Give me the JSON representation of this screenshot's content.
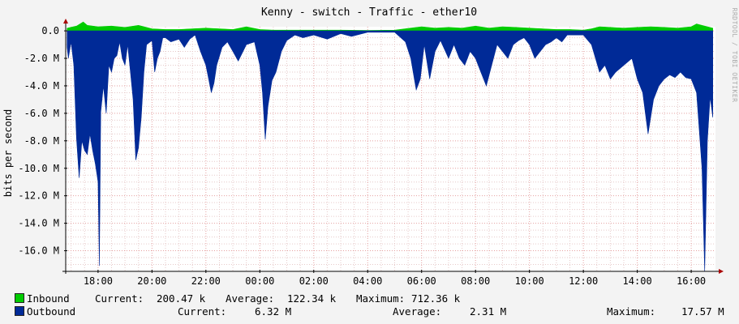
{
  "chart_data": {
    "type": "area",
    "title": "Kenny - switch - Traffic - ether10",
    "ylabel": "bits per second",
    "side_text": "RRDTOOL / TOBI OETIKER",
    "ylim": [
      -17.5,
      0.3
    ],
    "y_ticks": [
      0,
      -2,
      -4,
      -6,
      -8,
      -10,
      -12,
      -14,
      -16
    ],
    "y_tick_labels": [
      "0.0",
      "-2.0 M",
      "-4.0 M",
      "-6.0 M",
      "-8.0 M",
      "-10.0 M",
      "-12.0 M",
      "-14.0 M",
      "-16.0 M"
    ],
    "x_range_hours": [
      16.8,
      40.9
    ],
    "x_ticks": [
      18,
      20,
      22,
      24,
      26,
      28,
      30,
      32,
      34,
      36,
      38,
      40
    ],
    "x_tick_labels": [
      "18:00",
      "20:00",
      "22:00",
      "00:00",
      "02:00",
      "04:00",
      "06:00",
      "08:00",
      "10:00",
      "12:00",
      "14:00",
      "16:00"
    ],
    "series": [
      {
        "name": "Inbound",
        "color": "#00cc00",
        "points": [
          [
            16.85,
            0.2
          ],
          [
            17.2,
            0.35
          ],
          [
            17.45,
            0.65
          ],
          [
            17.6,
            0.4
          ],
          [
            18,
            0.3
          ],
          [
            18.5,
            0.35
          ],
          [
            19,
            0.25
          ],
          [
            19.5,
            0.4
          ],
          [
            20,
            0.15
          ],
          [
            20.5,
            0.1
          ],
          [
            21,
            0.1
          ],
          [
            21.5,
            0.15
          ],
          [
            22,
            0.2
          ],
          [
            22.5,
            0.15
          ],
          [
            23,
            0.1
          ],
          [
            23.5,
            0.3
          ],
          [
            24,
            0.1
          ],
          [
            24.5,
            0.05
          ],
          [
            25,
            0.05
          ],
          [
            26,
            0.05
          ],
          [
            27,
            0.05
          ],
          [
            28,
            0.03
          ],
          [
            29,
            0.05
          ],
          [
            30,
            0.3
          ],
          [
            30.5,
            0.2
          ],
          [
            31,
            0.25
          ],
          [
            31.5,
            0.2
          ],
          [
            32,
            0.35
          ],
          [
            32.5,
            0.2
          ],
          [
            33,
            0.3
          ],
          [
            33.5,
            0.25
          ],
          [
            34,
            0.2
          ],
          [
            34.5,
            0.15
          ],
          [
            35,
            0.1
          ],
          [
            35.5,
            0.1
          ],
          [
            36,
            0.05
          ],
          [
            36.3,
            0.15
          ],
          [
            36.6,
            0.3
          ],
          [
            37,
            0.25
          ],
          [
            37.5,
            0.2
          ],
          [
            38,
            0.25
          ],
          [
            38.5,
            0.3
          ],
          [
            39,
            0.25
          ],
          [
            39.5,
            0.2
          ],
          [
            40,
            0.3
          ],
          [
            40.2,
            0.5
          ],
          [
            40.5,
            0.35
          ],
          [
            40.8,
            0.2
          ]
        ]
      },
      {
        "name": "Outbound",
        "color": "#002a97",
        "points": [
          [
            16.85,
            -1.2
          ],
          [
            16.9,
            -2.0
          ],
          [
            17.0,
            -0.8
          ],
          [
            17.1,
            -2.5
          ],
          [
            17.2,
            -7.8
          ],
          [
            17.3,
            -10.7
          ],
          [
            17.4,
            -8.0
          ],
          [
            17.5,
            -8.7
          ],
          [
            17.6,
            -9.0
          ],
          [
            17.7,
            -7.5
          ],
          [
            17.8,
            -8.7
          ],
          [
            17.9,
            -9.7
          ],
          [
            18.0,
            -11.0
          ],
          [
            18.05,
            -17.1
          ],
          [
            18.1,
            -5.9
          ],
          [
            18.2,
            -4.0
          ],
          [
            18.3,
            -6.0
          ],
          [
            18.4,
            -2.5
          ],
          [
            18.5,
            -3.0
          ],
          [
            18.6,
            -2.0
          ],
          [
            18.7,
            -1.8
          ],
          [
            18.8,
            -0.8
          ],
          [
            18.9,
            -2.0
          ],
          [
            19.0,
            -2.5
          ],
          [
            19.1,
            -1.0
          ],
          [
            19.2,
            -3.0
          ],
          [
            19.3,
            -5.0
          ],
          [
            19.4,
            -9.4
          ],
          [
            19.5,
            -8.5
          ],
          [
            19.6,
            -6.3
          ],
          [
            19.7,
            -3.0
          ],
          [
            19.8,
            -1.0
          ],
          [
            20.0,
            -0.7
          ],
          [
            20.1,
            -3.0
          ],
          [
            20.2,
            -2.0
          ],
          [
            20.3,
            -1.5
          ],
          [
            20.4,
            -0.5
          ],
          [
            20.5,
            -0.5
          ],
          [
            20.7,
            -0.8
          ],
          [
            21.0,
            -0.6
          ],
          [
            21.2,
            -1.2
          ],
          [
            21.4,
            -0.6
          ],
          [
            21.6,
            -0.3
          ],
          [
            21.8,
            -1.5
          ],
          [
            22.0,
            -2.5
          ],
          [
            22.1,
            -3.5
          ],
          [
            22.2,
            -4.5
          ],
          [
            22.3,
            -3.8
          ],
          [
            22.4,
            -2.5
          ],
          [
            22.6,
            -1.2
          ],
          [
            22.8,
            -0.8
          ],
          [
            23.0,
            -1.5
          ],
          [
            23.2,
            -2.2
          ],
          [
            23.5,
            -1.0
          ],
          [
            23.8,
            -0.8
          ],
          [
            24.0,
            -2.5
          ],
          [
            24.1,
            -4.5
          ],
          [
            24.2,
            -7.9
          ],
          [
            24.3,
            -5.5
          ],
          [
            24.45,
            -3.6
          ],
          [
            24.6,
            -3.0
          ],
          [
            24.8,
            -1.5
          ],
          [
            25.0,
            -0.7
          ],
          [
            25.3,
            -0.3
          ],
          [
            25.6,
            -0.5
          ],
          [
            26.0,
            -0.3
          ],
          [
            26.5,
            -0.6
          ],
          [
            27.0,
            -0.2
          ],
          [
            27.4,
            -0.4
          ],
          [
            28.0,
            -0.1
          ],
          [
            29.0,
            -0.1
          ],
          [
            29.4,
            -0.8
          ],
          [
            29.6,
            -2.0
          ],
          [
            29.8,
            -4.3
          ],
          [
            29.95,
            -3.5
          ],
          [
            30.1,
            -1.0
          ],
          [
            30.3,
            -3.5
          ],
          [
            30.5,
            -1.5
          ],
          [
            30.7,
            -0.7
          ],
          [
            31.0,
            -2.0
          ],
          [
            31.2,
            -1.0
          ],
          [
            31.4,
            -2.0
          ],
          [
            31.6,
            -2.5
          ],
          [
            31.8,
            -1.5
          ],
          [
            32.0,
            -2.0
          ],
          [
            32.2,
            -3.0
          ],
          [
            32.4,
            -4.0
          ],
          [
            32.6,
            -2.5
          ],
          [
            32.8,
            -1.0
          ],
          [
            33.0,
            -1.5
          ],
          [
            33.2,
            -2.0
          ],
          [
            33.4,
            -1.0
          ],
          [
            33.6,
            -0.7
          ],
          [
            33.8,
            -0.5
          ],
          [
            34.0,
            -1.0
          ],
          [
            34.2,
            -2.0
          ],
          [
            34.4,
            -1.5
          ],
          [
            34.6,
            -1.0
          ],
          [
            34.8,
            -0.8
          ],
          [
            35.0,
            -0.5
          ],
          [
            35.2,
            -0.8
          ],
          [
            35.4,
            -0.3
          ],
          [
            36.0,
            -0.3
          ],
          [
            36.3,
            -1.0
          ],
          [
            36.6,
            -3.0
          ],
          [
            36.8,
            -2.5
          ],
          [
            37.0,
            -3.5
          ],
          [
            37.2,
            -3.0
          ],
          [
            37.5,
            -2.5
          ],
          [
            37.8,
            -2.0
          ],
          [
            38.0,
            -3.5
          ],
          [
            38.2,
            -4.5
          ],
          [
            38.4,
            -7.5
          ],
          [
            38.6,
            -5.0
          ],
          [
            38.8,
            -4.0
          ],
          [
            39.0,
            -3.5
          ],
          [
            39.2,
            -3.2
          ],
          [
            39.4,
            -3.4
          ],
          [
            39.6,
            -3.0
          ],
          [
            39.8,
            -3.4
          ],
          [
            40.0,
            -3.5
          ],
          [
            40.2,
            -4.5
          ],
          [
            40.4,
            -10.0
          ],
          [
            40.5,
            -17.5
          ],
          [
            40.6,
            -8.0
          ],
          [
            40.7,
            -4.8
          ],
          [
            40.8,
            -6.3
          ]
        ]
      }
    ],
    "legend": [
      {
        "name": "Inbound",
        "color": "#00cc00",
        "current_label": "Current:",
        "current": "200.47 k",
        "average_label": "Average:",
        "average": "122.34 k",
        "maximum_label": "Maximum:",
        "maximum": "712.36 k"
      },
      {
        "name": "Outbound",
        "color": "#002a97",
        "current_label": "Current:",
        "current": "6.32 M",
        "average_label": "Average:",
        "average": "2.31 M",
        "maximum_label": "Maximum:",
        "maximum": "17.57 M"
      }
    ]
  }
}
